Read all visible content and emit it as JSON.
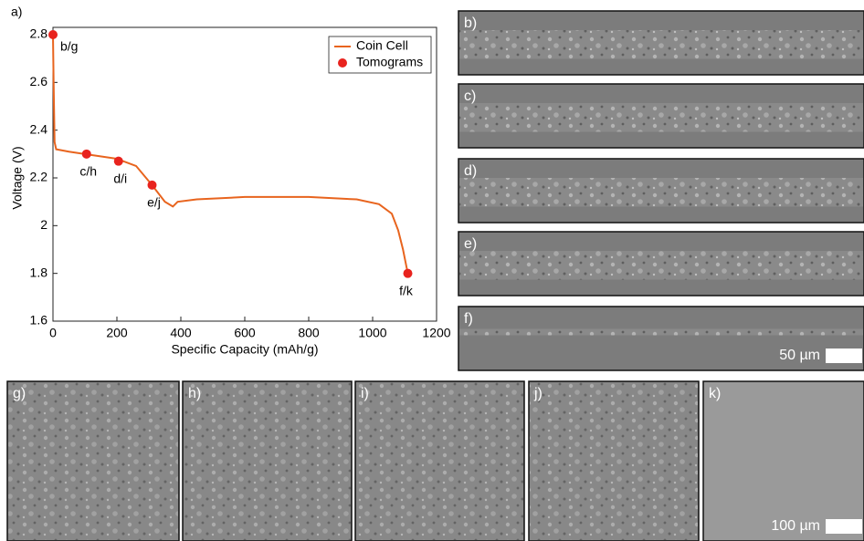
{
  "chart_data": {
    "type": "line",
    "panel_label": "a)",
    "x_label": "Specific Capacity (mAh/g)",
    "y_label": "Voltage (V)",
    "xlim": [
      0,
      1200
    ],
    "xticks": [
      0,
      200,
      400,
      600,
      800,
      1000,
      1200
    ],
    "ylim": [
      1.6,
      2.8
    ],
    "yticks": [
      1.6,
      1.8,
      2,
      2.2,
      2.4,
      2.6,
      2.8
    ],
    "legend": "upper right",
    "series": [
      {
        "name": "Coin Cell",
        "type": "line",
        "color": "#e8641e",
        "x": [
          0,
          2,
          5,
          10,
          50,
          100,
          200,
          260,
          310,
          350,
          375,
          390,
          450,
          600,
          800,
          950,
          1020,
          1060,
          1080,
          1095,
          1110
        ],
        "values": [
          2.8,
          2.6,
          2.35,
          2.32,
          2.31,
          2.3,
          2.28,
          2.25,
          2.17,
          2.1,
          2.08,
          2.1,
          2.11,
          2.12,
          2.12,
          2.11,
          2.09,
          2.05,
          1.98,
          1.9,
          1.8
        ]
      },
      {
        "name": "Tomograms",
        "type": "scatter",
        "color": "#e8231e",
        "x": [
          0,
          105,
          205,
          310,
          1110
        ],
        "values": [
          2.8,
          2.3,
          2.27,
          2.17,
          1.8
        ],
        "point_labels": [
          "b/g",
          "c/h",
          "d/i",
          "e/j",
          "f/k"
        ]
      }
    ]
  },
  "images": {
    "panels": [
      "b)",
      "c)",
      "d)",
      "e)",
      "f)",
      "g)",
      "h)",
      "i)",
      "j)",
      "k)"
    ],
    "scale_bars": [
      "50 µm",
      "100 µm"
    ]
  }
}
